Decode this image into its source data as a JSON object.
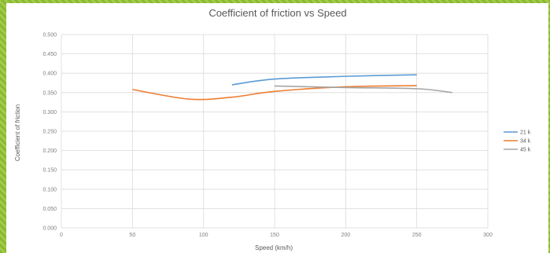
{
  "chart_data": {
    "type": "line",
    "title": "Coefficient of friction vs Speed",
    "xlabel": "Speed (km/h)",
    "ylabel": "Coefficient of friction",
    "xlim": [
      0,
      300
    ],
    "ylim": [
      0,
      0.5
    ],
    "x_ticks": [
      "0",
      "50",
      "100",
      "150",
      "200",
      "250",
      "300"
    ],
    "y_ticks": [
      "0.000",
      "0.050",
      "0.100",
      "0.150",
      "0.200",
      "0.250",
      "0.300",
      "0.350",
      "0.400",
      "0.450",
      "0.500"
    ],
    "grid": true,
    "legend_position": "right",
    "series": [
      {
        "name": "21 k",
        "color": "#5b9bd5",
        "points": [
          [
            120,
            0.37
          ],
          [
            150,
            0.385
          ],
          [
            200,
            0.392
          ],
          [
            250,
            0.396
          ]
        ]
      },
      {
        "name": "34 k",
        "color": "#ed7d31",
        "points": [
          [
            50,
            0.358
          ],
          [
            90,
            0.333
          ],
          [
            120,
            0.338
          ],
          [
            150,
            0.353
          ],
          [
            200,
            0.365
          ],
          [
            250,
            0.368
          ]
        ]
      },
      {
        "name": "45 k",
        "color": "#a5a5a5",
        "points": [
          [
            150,
            0.367
          ],
          [
            200,
            0.363
          ],
          [
            250,
            0.36
          ],
          [
            275,
            0.35
          ]
        ]
      }
    ]
  }
}
